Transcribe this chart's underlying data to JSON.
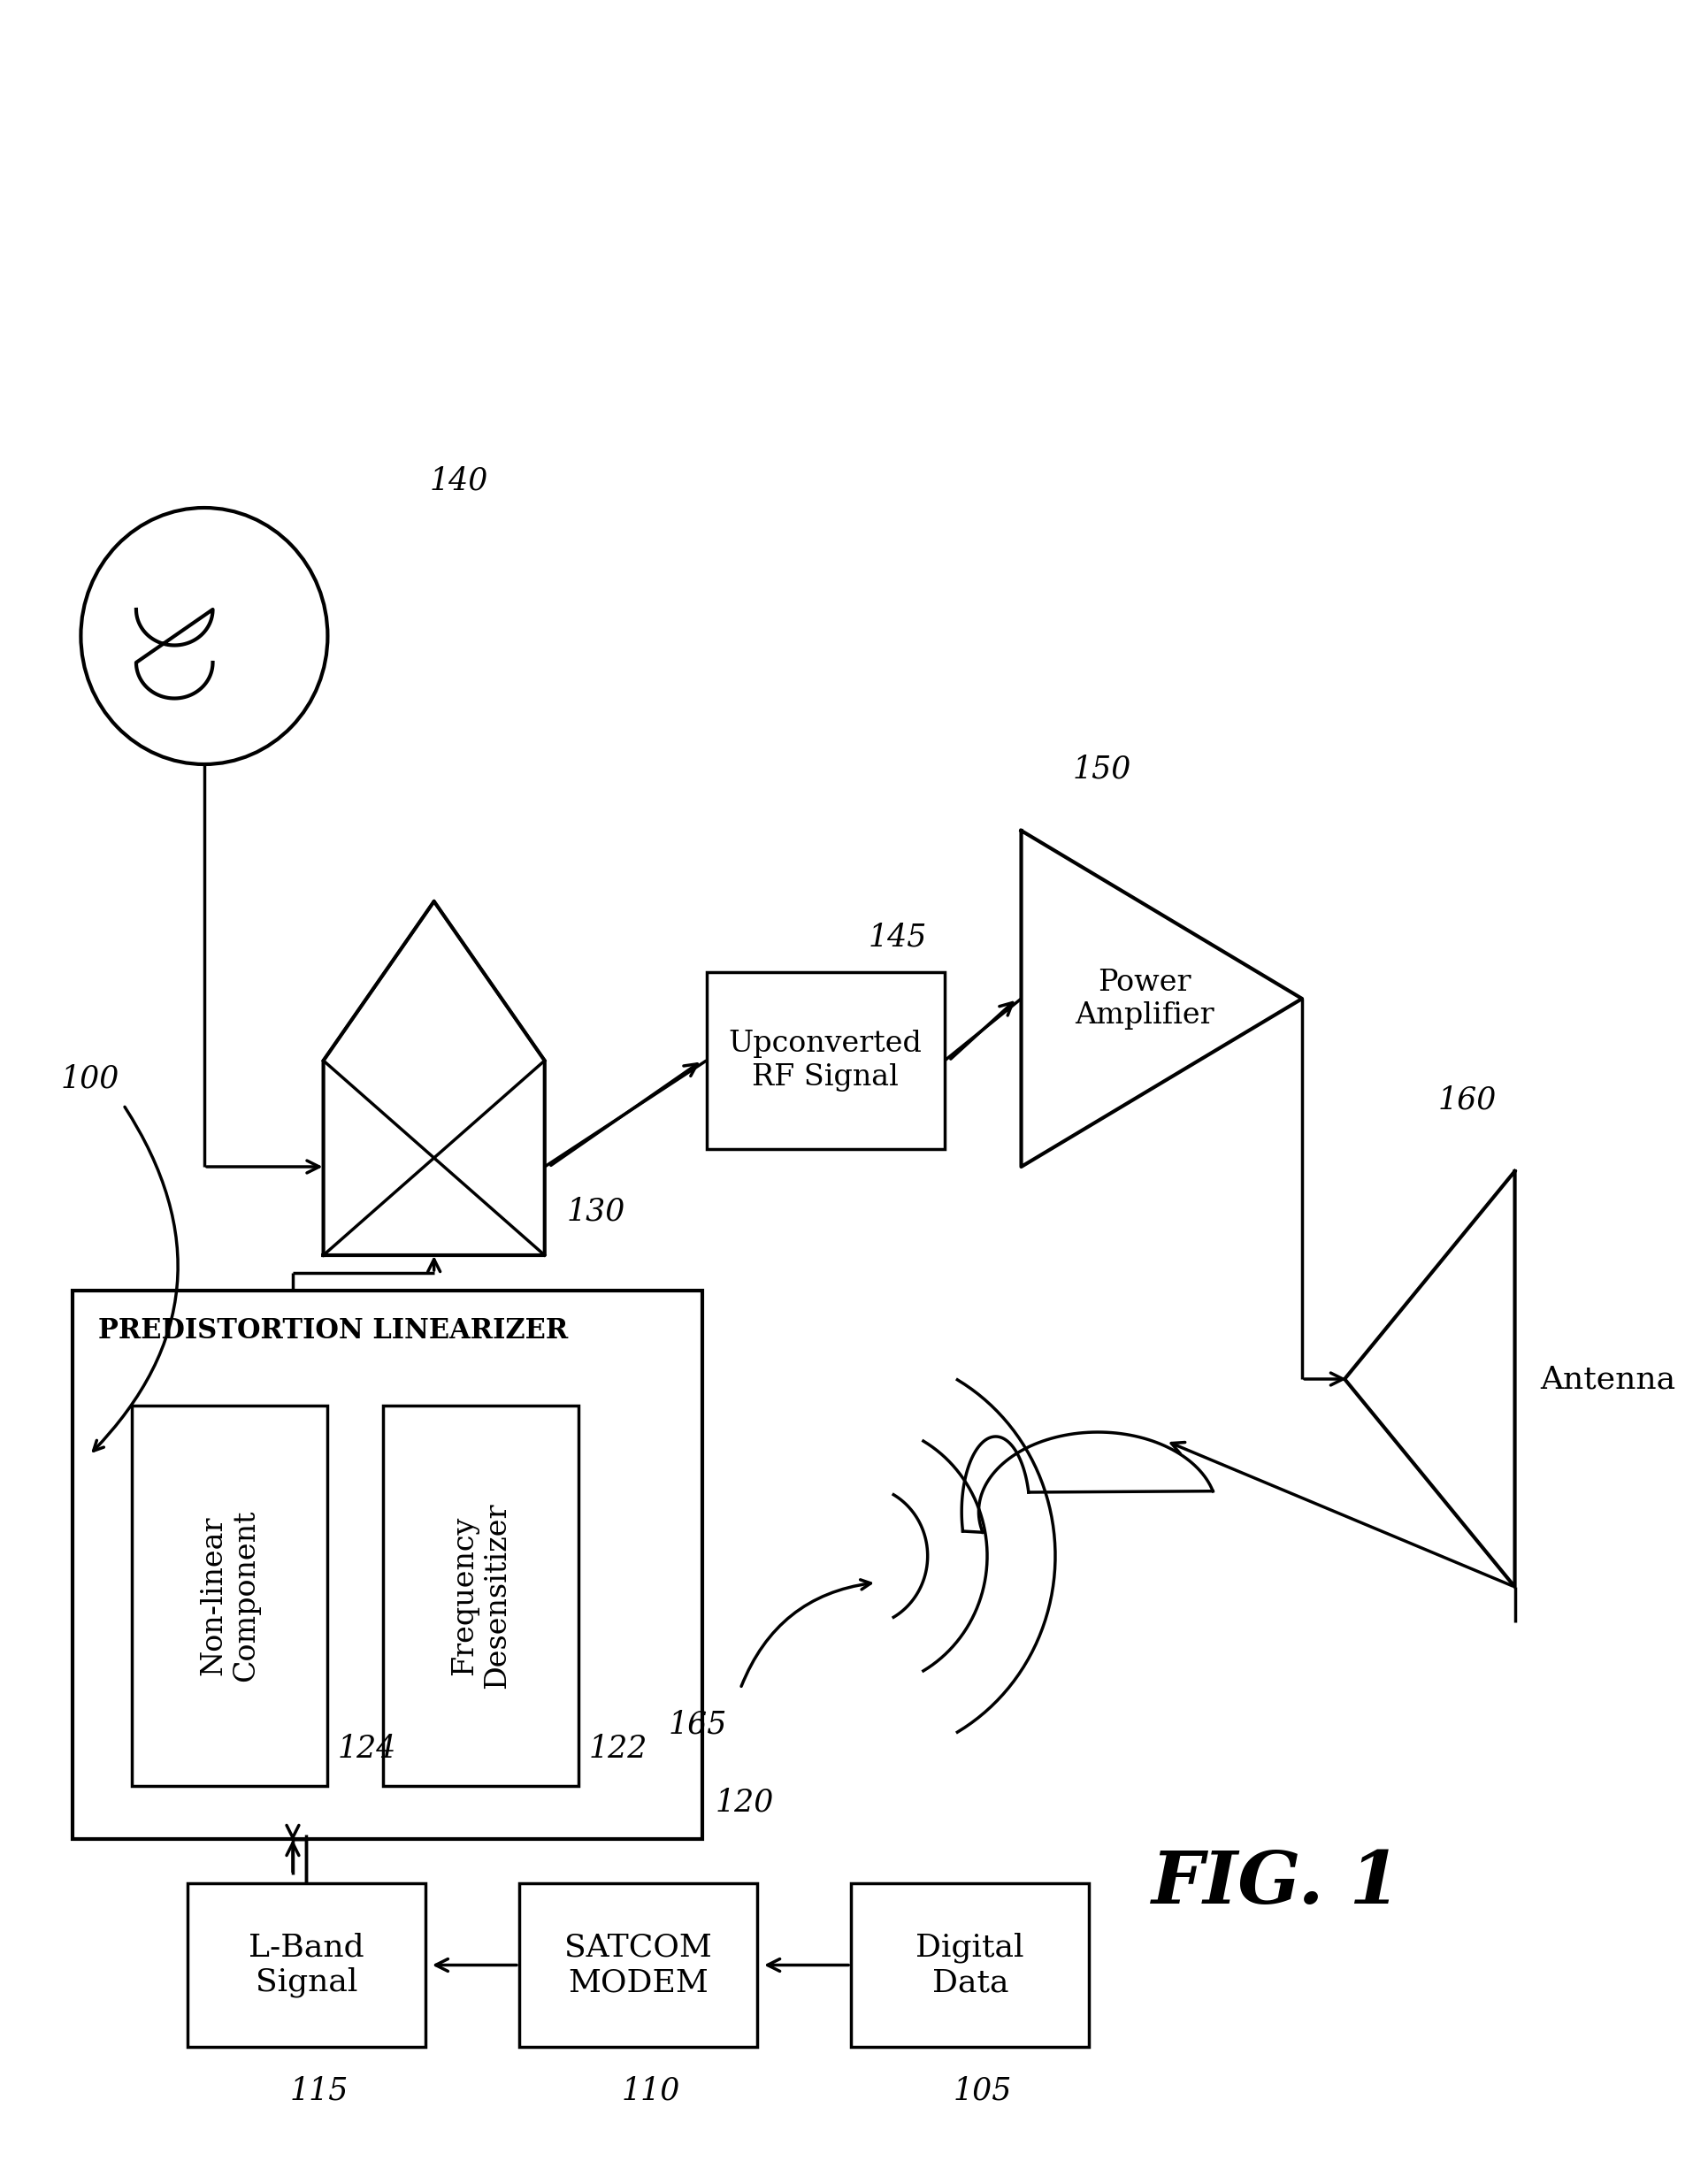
{
  "background": "#ffffff",
  "lc": "#000000",
  "lw": 2.5,
  "fig_label": "FIG. 1",
  "bottom_boxes": [
    {
      "key": "lband",
      "label": "L-Band\nSignal",
      "ref": "115"
    },
    {
      "key": "satcom",
      "label": "SATCOM\nMODEM",
      "ref": "110"
    },
    {
      "key": "digdat",
      "label": "Digital\nData",
      "ref": "105"
    }
  ],
  "nonlinear_label": "Non-linear\nComponent",
  "freq_desens_label": "Frequency\nDesensitizer",
  "predist_label": "PREDISTORTION LINEARIZER",
  "upconv_label": "Upconverted\nRF Signal",
  "pa_label": "Power\nAmplifier",
  "antenna_label": "Antenna",
  "refs": {
    "100": "100",
    "105": "105",
    "110": "110",
    "115": "115",
    "120": "120",
    "122": "122",
    "124": "124",
    "130": "130",
    "140": "140",
    "145": "145",
    "150": "150",
    "160": "160",
    "165": "165"
  }
}
